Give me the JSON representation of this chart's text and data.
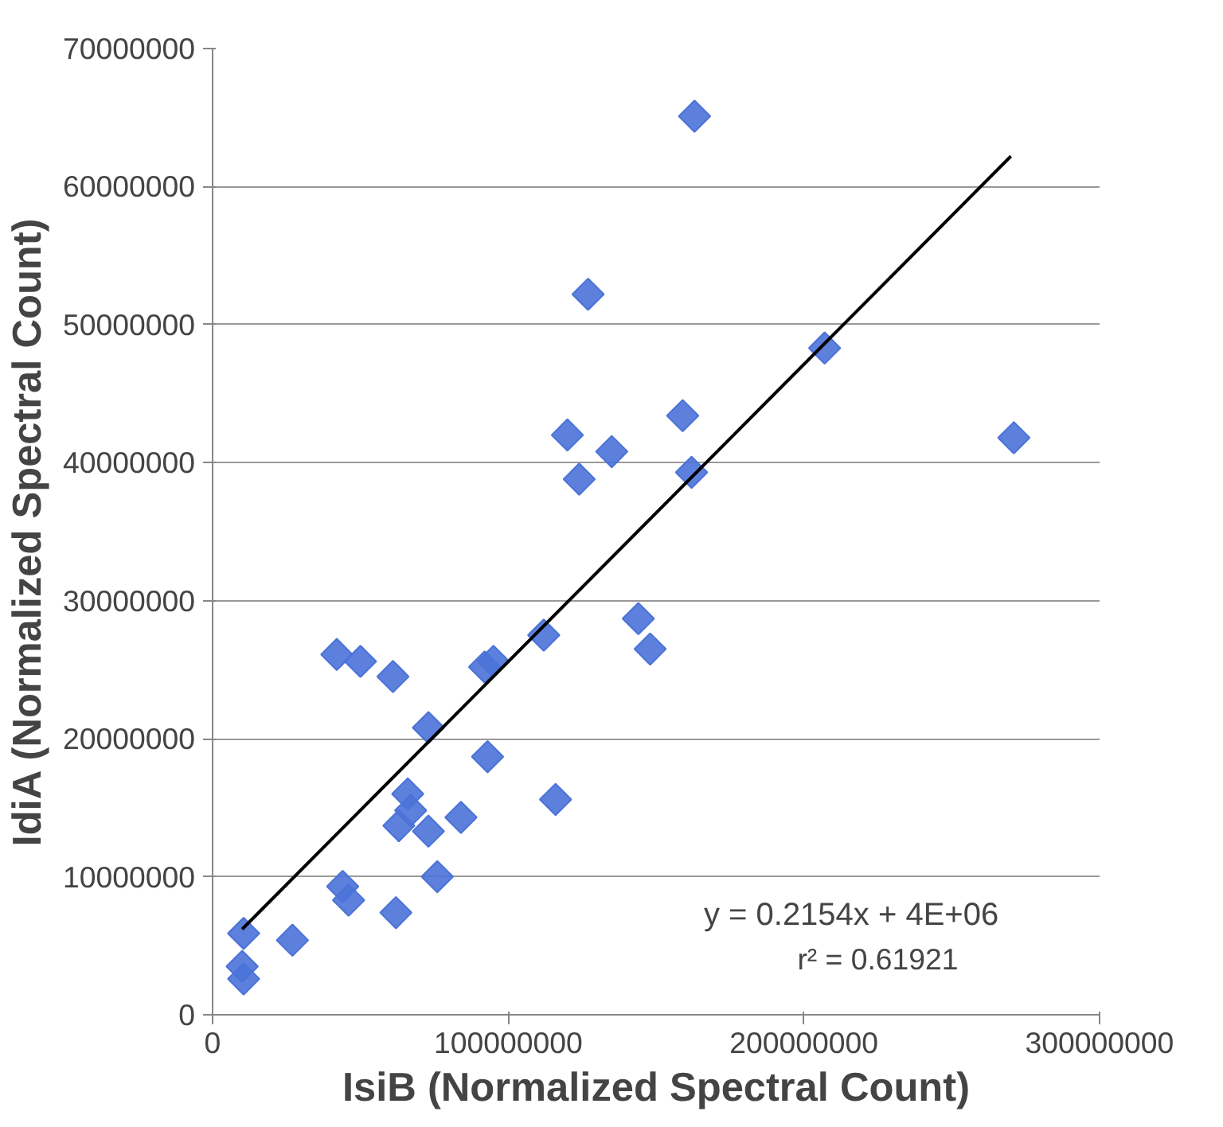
{
  "chart_data": {
    "type": "scatter",
    "xlabel": "IsiB (Normalized Spectral Count)",
    "ylabel": "IdiA (Normalized Spectral Count)",
    "xlim": [
      0,
      300000000
    ],
    "ylim": [
      0,
      70000000
    ],
    "xticks": [
      0,
      100000000,
      200000000,
      300000000
    ],
    "yticks": [
      0,
      10000000,
      20000000,
      30000000,
      40000000,
      50000000,
      60000000,
      70000000
    ],
    "grid": "y",
    "annotations": [
      "y = 0.2154x + 4E+06",
      "r² = 0.61921"
    ],
    "series": [
      {
        "marker": "diamond",
        "color": "#4a72d8",
        "x": [
          10500000,
          10000000,
          10500000,
          27000000,
          44000000,
          46000000,
          62000000,
          76000000,
          63000000,
          66000000,
          67000000,
          73000000,
          84000000,
          116000000,
          93000000,
          73000000,
          42000000,
          50000000,
          61000000,
          92000000,
          95000000,
          112000000,
          144000000,
          148000000,
          163000000,
          127000000,
          207000000,
          159000000,
          120000000,
          135000000,
          124000000,
          162000000,
          271000000
        ],
        "values": [
          2600000,
          3500000,
          5900000,
          5400000,
          9300000,
          8300000,
          7400000,
          10000000,
          13700000,
          16000000,
          14800000,
          13300000,
          14300000,
          15600000,
          18700000,
          20800000,
          26100000,
          25600000,
          24500000,
          25200000,
          25600000,
          27500000,
          28700000,
          26500000,
          65100000,
          52200000,
          48300000,
          43400000,
          42000000,
          40800000,
          38800000,
          39300000,
          41800000
        ]
      },
      {
        "type": "line",
        "marker": "none",
        "color": "#000000",
        "x": [
          10000000,
          270000000
        ],
        "values": [
          6200000,
          62200000
        ]
      }
    ]
  }
}
